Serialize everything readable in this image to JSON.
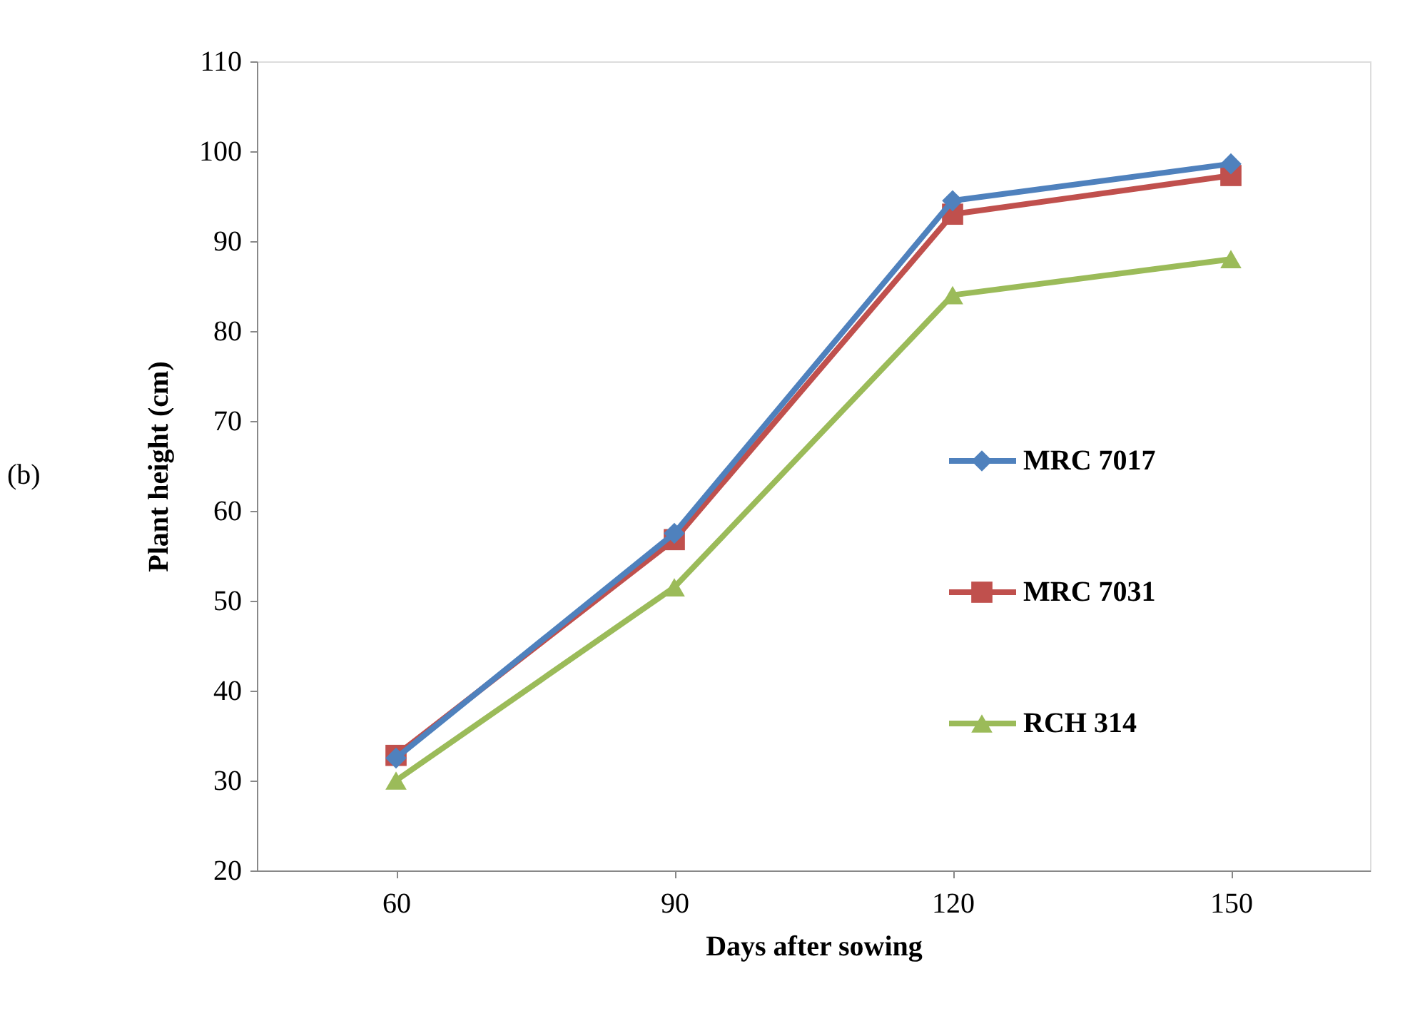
{
  "chart_data": {
    "type": "line",
    "xlabel": "Days after sowing",
    "ylabel": "Plant height (cm)",
    "categories": [
      "60",
      "90",
      "120",
      "150"
    ],
    "series": [
      {
        "name": "MRC 7017",
        "color": "#4f81bd",
        "marker": "diamond",
        "values": [
          32.5,
          57.5,
          94.5,
          98.6
        ]
      },
      {
        "name": "MRC 7031",
        "color": "#c0504d",
        "marker": "square",
        "values": [
          32.8,
          56.8,
          93.0,
          97.3
        ]
      },
      {
        "name": "RCH 314",
        "color": "#9bbb59",
        "marker": "triangle",
        "values": [
          30.0,
          51.5,
          84.0,
          88.0
        ]
      }
    ],
    "ylim": [
      20,
      110
    ],
    "yticks": [
      20,
      30,
      40,
      50,
      60,
      70,
      80,
      90,
      100,
      110
    ],
    "grid": false,
    "legend": "right",
    "line_style": "solid",
    "annotations": [
      "(b)"
    ]
  }
}
